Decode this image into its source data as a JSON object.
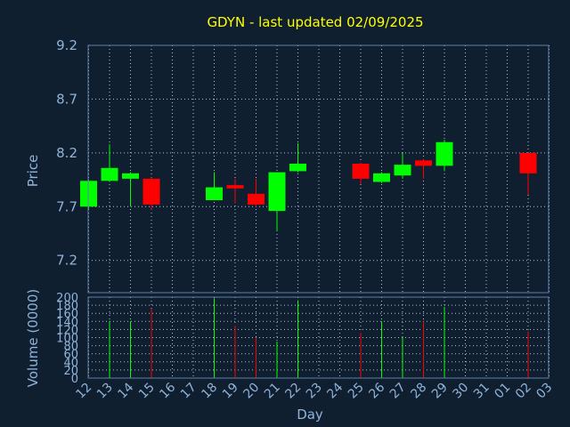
{
  "chart_data": [
    {
      "type": "candlestick",
      "title": "GDYN - last updated 02/09/2025",
      "ylabel": "Price",
      "ylim": [
        6.9,
        9.2
      ],
      "yticks": [
        7.2,
        7.7,
        8.2,
        8.7,
        9.2
      ],
      "grid": true,
      "colors": {
        "up": "#00ff00",
        "down": "#ff0000",
        "grid": "#b0c4de",
        "axis": "#5f7fa5"
      },
      "categories": [
        "12",
        "13",
        "14",
        "15",
        "16",
        "17",
        "18",
        "19",
        "20",
        "21",
        "22",
        "23",
        "24",
        "25",
        "26",
        "27",
        "28",
        "29",
        "30",
        "31",
        "01",
        "02",
        "03"
      ],
      "candles": [
        {
          "day": "12",
          "open": 7.7,
          "high": 7.95,
          "low": 7.68,
          "close": 7.94
        },
        {
          "day": "13",
          "open": 7.94,
          "high": 8.28,
          "low": 7.93,
          "close": 8.06
        },
        {
          "day": "14",
          "open": 7.96,
          "high": 8.02,
          "low": 7.7,
          "close": 8.01
        },
        {
          "day": "15",
          "open": 7.96,
          "high": 7.97,
          "low": 7.67,
          "close": 7.72
        },
        {
          "day": "18",
          "open": 7.76,
          "high": 8.02,
          "low": 7.76,
          "close": 7.88
        },
        {
          "day": "19",
          "open": 7.9,
          "high": 7.96,
          "low": 7.73,
          "close": 7.87
        },
        {
          "day": "20",
          "open": 7.82,
          "high": 7.96,
          "low": 7.7,
          "close": 7.72
        },
        {
          "day": "21",
          "open": 7.66,
          "high": 8.02,
          "low": 7.47,
          "close": 8.02
        },
        {
          "day": "22",
          "open": 8.03,
          "high": 8.29,
          "low": 8.02,
          "close": 8.1
        },
        {
          "day": "25",
          "open": 8.1,
          "high": 8.11,
          "low": 7.91,
          "close": 7.96
        },
        {
          "day": "26",
          "open": 7.93,
          "high": 8.02,
          "low": 7.92,
          "close": 8.01
        },
        {
          "day": "27",
          "open": 7.99,
          "high": 8.2,
          "low": 7.96,
          "close": 8.09
        },
        {
          "day": "28",
          "open": 8.13,
          "high": 8.14,
          "low": 7.96,
          "close": 8.08
        },
        {
          "day": "29",
          "open": 8.08,
          "high": 8.32,
          "low": 8.03,
          "close": 8.3
        },
        {
          "day": "02",
          "open": 8.2,
          "high": 8.2,
          "low": 7.81,
          "close": 8.01
        }
      ]
    },
    {
      "type": "bar",
      "ylabel": "Volume (0000)",
      "xlabel": "Day",
      "ylim": [
        0,
        200
      ],
      "yticks": [
        0,
        20,
        40,
        60,
        80,
        100,
        120,
        140,
        160,
        180,
        200
      ],
      "grid": true,
      "categories": [
        "12",
        "13",
        "14",
        "15",
        "16",
        "17",
        "18",
        "19",
        "20",
        "21",
        "22",
        "23",
        "24",
        "25",
        "26",
        "27",
        "28",
        "29",
        "30",
        "31",
        "01",
        "02",
        "03"
      ],
      "bars": [
        {
          "day": "13",
          "value": 140,
          "direction": "up"
        },
        {
          "day": "14",
          "value": 140,
          "direction": "up"
        },
        {
          "day": "15",
          "value": 172,
          "direction": "down"
        },
        {
          "day": "18",
          "value": 197,
          "direction": "up"
        },
        {
          "day": "19",
          "value": 130,
          "direction": "down"
        },
        {
          "day": "20",
          "value": 100,
          "direction": "down"
        },
        {
          "day": "21",
          "value": 90,
          "direction": "up"
        },
        {
          "day": "22",
          "value": 192,
          "direction": "up"
        },
        {
          "day": "25",
          "value": 112,
          "direction": "down"
        },
        {
          "day": "26",
          "value": 140,
          "direction": "up"
        },
        {
          "day": "27",
          "value": 102,
          "direction": "up"
        },
        {
          "day": "28",
          "value": 140,
          "direction": "down"
        },
        {
          "day": "29",
          "value": 176,
          "direction": "up"
        },
        {
          "day": "02",
          "value": 115,
          "direction": "down"
        }
      ]
    }
  ]
}
